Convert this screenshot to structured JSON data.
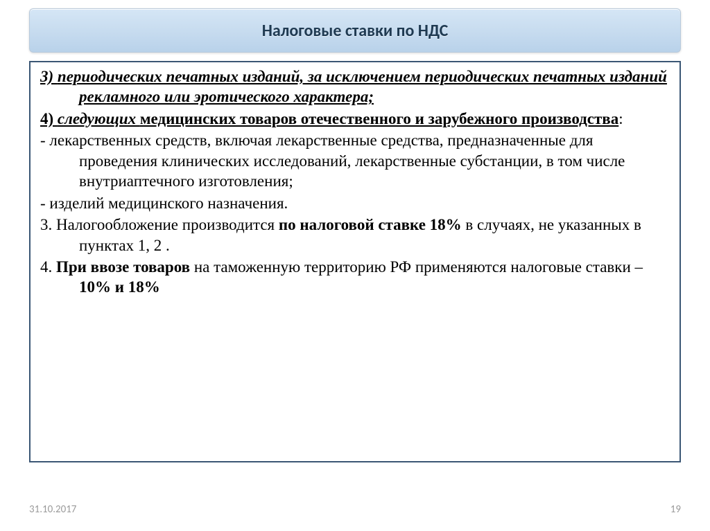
{
  "title": "Налоговые ставки по НДС",
  "items": {
    "p3_lead": "3) ",
    "p3_text": "периодических печатных изданий, за исключением периодических печатных изданий рекламного или эротического характера;",
    "p4_lead": "4) ",
    "p4_italic": "следующих ",
    "p4_ul_part": "медицинских товаров отечественного и зарубежного производства",
    "p4_tail": ":",
    "dash1": "- лекарственных средств, включая лекарственные средства, предназначенные для проведения клинических исследований, лекарственные субстанции, в том числе внутриаптечного изготовления;",
    "dash2": "- изделий медицинского назначения.",
    "para3_a": "3. Налогообложение производится ",
    "para3_b": "по налоговой ставке 18%",
    "para3_c": " в случаях, не указанных в пунктах 1, 2 .",
    "para4_a": "4. ",
    "para4_b": "При ввозе товаров ",
    "para4_c": "на таможенную территорию РФ применяются налоговые ставки – ",
    "para4_d": "10% и 18%"
  },
  "footer": {
    "date": "31.10.2017",
    "page": "19"
  },
  "style": {
    "slide_width": 1024,
    "slide_height": 767,
    "title_bg_gradient": [
      "#d5e6f6",
      "#c9ddf0",
      "#b9d2ea"
    ],
    "title_border": "#b9cadb",
    "title_color": "#1f3a52",
    "title_fontsize": 24,
    "content_border": "#3a5674",
    "body_fontsize": 23,
    "body_color": "#000000",
    "footer_color": "#9b9b9b",
    "footer_fontsize": 15,
    "font_body": "Times New Roman",
    "font_title": "Calibri"
  }
}
